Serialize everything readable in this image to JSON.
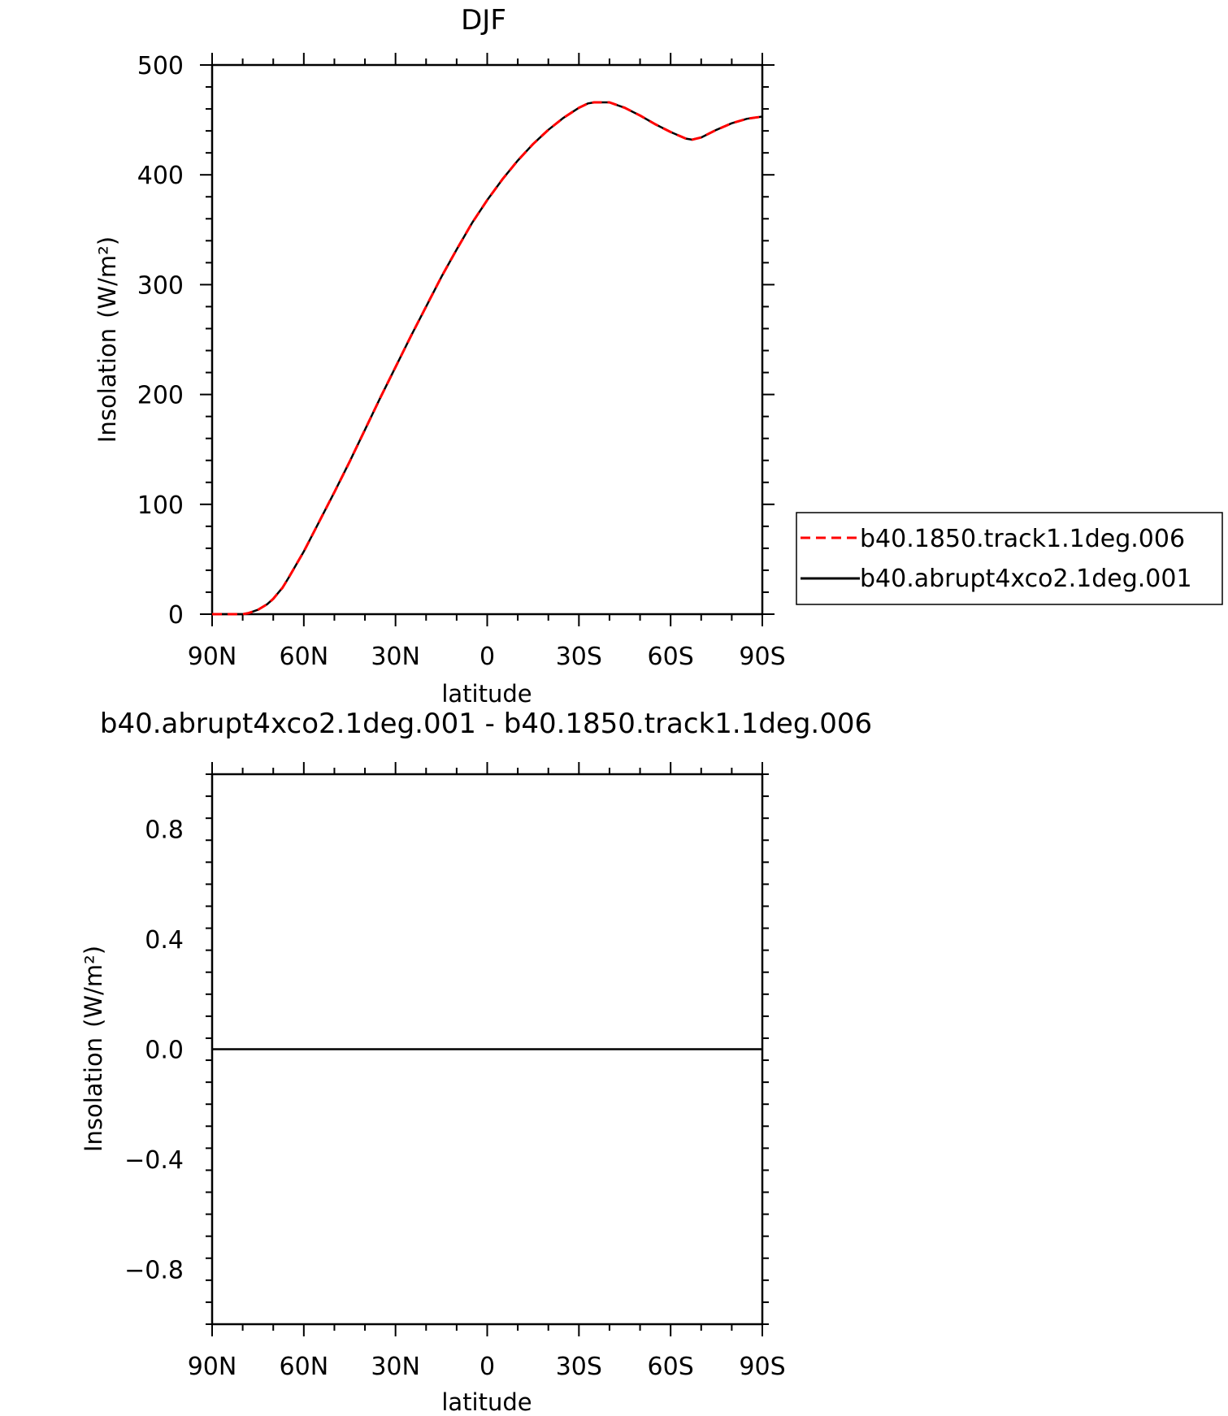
{
  "chart_data": [
    {
      "type": "line",
      "title": "DJF",
      "xlabel": "latitude",
      "ylabel": "Insolation",
      "ylabel_unit": "(W/m²)",
      "x_tick_labels": [
        "90N",
        "60N",
        "30N",
        "0",
        "30S",
        "60S",
        "90S"
      ],
      "x_tick_values": [
        90,
        60,
        30,
        0,
        -30,
        -60,
        -90
      ],
      "xlim": [
        90,
        -90
      ],
      "y_tick_labels": [
        "0",
        "100",
        "200",
        "300",
        "400",
        "500"
      ],
      "y_tick_values": [
        0,
        100,
        200,
        300,
        400,
        500
      ],
      "ylim": [
        0,
        500
      ],
      "grid": false,
      "legend_placement": "right",
      "x": [
        90,
        85,
        80,
        78,
        75,
        72,
        70,
        67,
        65,
        60,
        55,
        50,
        45,
        40,
        35,
        30,
        25,
        20,
        15,
        10,
        5,
        0,
        -5,
        -10,
        -15,
        -20,
        -25,
        -30,
        -33,
        -35,
        -40,
        -45,
        -50,
        -55,
        -60,
        -65,
        -67,
        -70,
        -75,
        -80,
        -85,
        -90
      ],
      "series": [
        {
          "name": "b40.1850.track1.1deg.006",
          "color": "#ff0000",
          "style": "dashed",
          "values": [
            0,
            0,
            0,
            1,
            4,
            9,
            14,
            24,
            33,
            57,
            84,
            111,
            139,
            168,
            197,
            225,
            253,
            280,
            307,
            332,
            356,
            377,
            396,
            413,
            428,
            441,
            452,
            461,
            465,
            466,
            466,
            461,
            454,
            446,
            439,
            433,
            432,
            434,
            441,
            447,
            451,
            453
          ]
        },
        {
          "name": "b40.abrupt4xco2.1deg.001",
          "color": "#000000",
          "style": "solid",
          "values": [
            0,
            0,
            0,
            1,
            4,
            9,
            14,
            24,
            33,
            57,
            84,
            111,
            139,
            168,
            197,
            225,
            253,
            280,
            307,
            332,
            356,
            377,
            396,
            413,
            428,
            441,
            452,
            461,
            465,
            466,
            466,
            461,
            454,
            446,
            439,
            433,
            432,
            434,
            441,
            447,
            451,
            453
          ]
        }
      ]
    },
    {
      "type": "line",
      "title": "b40.abrupt4xco2.1deg.001 - b40.1850.track1.1deg.006",
      "xlabel": "latitude",
      "ylabel": "Insolation",
      "ylabel_unit": "(W/m²)",
      "x_tick_labels": [
        "90N",
        "60N",
        "30N",
        "0",
        "30S",
        "60S",
        "90S"
      ],
      "x_tick_values": [
        90,
        60,
        30,
        0,
        -30,
        -60,
        -90
      ],
      "xlim": [
        90,
        -90
      ],
      "y_tick_labels": [
        "-0.8",
        "-0.4",
        "0.0",
        "0.4",
        "0.8"
      ],
      "y_tick_values": [
        -0.8,
        -0.4,
        0,
        0.4,
        0.8
      ],
      "ylim": [
        -1,
        1
      ],
      "grid": false,
      "x": [
        90,
        -90
      ],
      "series": [
        {
          "color": "#000000",
          "style": "solid",
          "values": [
            0,
            0
          ]
        }
      ]
    }
  ]
}
